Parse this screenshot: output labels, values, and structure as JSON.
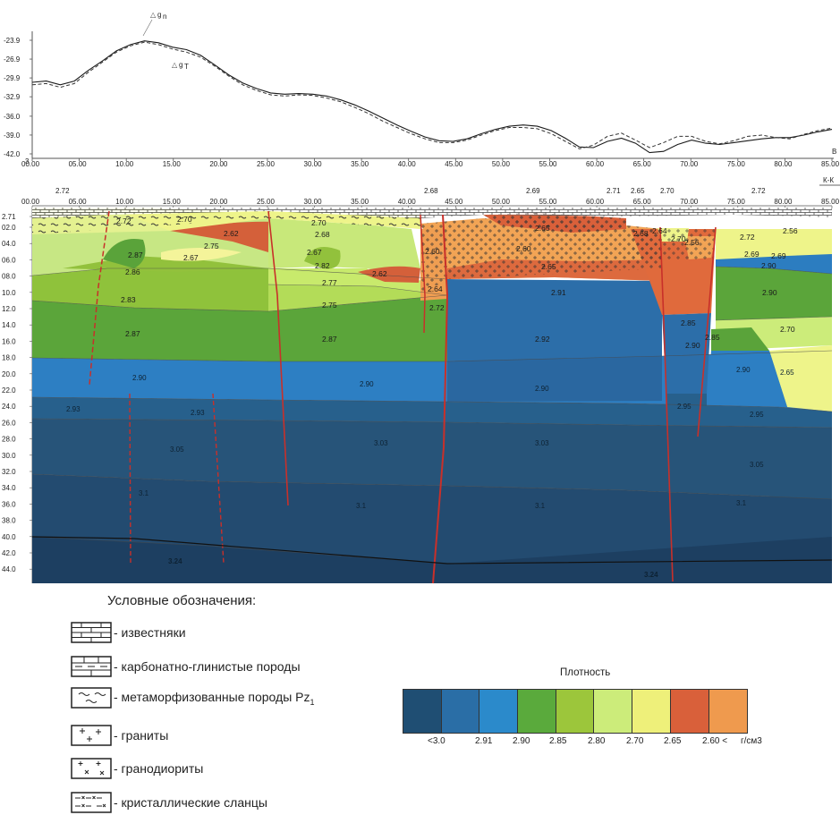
{
  "gravity_profile": {
    "y_ticks": [
      "-23.9",
      "-26.9",
      "-29.9",
      "-32.9",
      "-36.0",
      "-39.0",
      "-42.0"
    ],
    "x_ticks": [
      "00.00",
      "05.00",
      "10.00",
      "15.00",
      "20.00",
      "25.00",
      "30.00",
      "35.00",
      "40.00",
      "45.00",
      "50.00",
      "55.00",
      "60.00",
      "65.00",
      "70.00",
      "75.00",
      "80.00",
      "85.00"
    ],
    "x_origin_label": "3",
    "x_end_label": "B",
    "observed_label": "g",
    "observed_sub": "n",
    "model_label": "g",
    "model_sub": "T",
    "observed_values": [
      -30.6,
      -30.4,
      -31.0,
      -30.4,
      -28.7,
      -27.2,
      -25.6,
      -24.6,
      -24.0,
      -24.3,
      -25.0,
      -25.4,
      -26.3,
      -27.8,
      -29.4,
      -30.7,
      -31.6,
      -32.3,
      -32.5,
      -32.4,
      -32.5,
      -32.8,
      -33.4,
      -34.2,
      -35.2,
      -36.3,
      -37.4,
      -38.4,
      -39.3,
      -39.9,
      -40.0,
      -39.6,
      -38.8,
      -38.1,
      -37.6,
      -37.4,
      -37.6,
      -38.3,
      -39.5,
      -40.9,
      -41.0,
      -40.0,
      -39.5,
      -40.3,
      -41.8,
      -41.6,
      -40.5,
      -39.8,
      -40.3,
      -40.5,
      -40.2,
      -39.9,
      -39.6,
      -39.4,
      -39.4,
      -39.0,
      -38.5,
      -38.1
    ],
    "model_values": [
      -31.0,
      -30.8,
      -31.4,
      -30.8,
      -29.0,
      -27.4,
      -25.8,
      -24.8,
      -24.2,
      -24.6,
      -25.3,
      -25.8,
      -26.6,
      -28.0,
      -29.6,
      -31.0,
      -31.9,
      -32.6,
      -32.8,
      -32.6,
      -32.7,
      -33.1,
      -33.7,
      -34.6,
      -35.6,
      -36.8,
      -37.8,
      -38.8,
      -39.6,
      -40.2,
      -40.2,
      -39.8,
      -39.0,
      -38.3,
      -37.8,
      -37.8,
      -38.0,
      -38.8,
      -40.0,
      -41.2,
      -40.6,
      -39.2,
      -38.7,
      -39.8,
      -41.0,
      -40.2,
      -39.2,
      -39.2,
      -40.0,
      -40.4,
      -39.9,
      -39.2,
      -39.0,
      -39.4,
      -39.6,
      -38.9,
      -38.3,
      -37.9
    ]
  },
  "section": {
    "corner_label": "К-К",
    "x_ticks": [
      "00.00",
      "05.00",
      "10.00",
      "15.00",
      "20.00",
      "25.00",
      "30.00",
      "35.00",
      "40.00",
      "45.00",
      "50.00",
      "55.00",
      "60.00",
      "65.00",
      "70.00",
      "75.00",
      "80.00",
      "85.00"
    ],
    "depth_ticks": [
      "2.71",
      "02.0",
      "04.0",
      "06.0",
      "08.0",
      "10.0",
      "12.0",
      "14.0",
      "16.0",
      "18.0",
      "20.0",
      "22.0",
      "24.0",
      "26.0",
      "28.0",
      "30.0",
      "32.0",
      "34.0",
      "36.0",
      "38.0",
      "40.0",
      "42.0",
      "44.0"
    ],
    "surface_labels": [
      "2.72",
      "2.68",
      "2.69",
      "2.71",
      "2.65",
      "2.70",
      "2.72"
    ],
    "values": [
      "2.72",
      "2.70",
      "2.75",
      "2.67",
      "2.87",
      "2.86",
      "2.62",
      "2.70",
      "2.68",
      "2.67",
      "2.82",
      "2.62",
      "2.77",
      "2.75",
      "2.60",
      "2.64",
      "2.72",
      "2.65",
      "2.60",
      "2.65",
      "2.68",
      "2.64",
      "2.70",
      "2.56",
      "2.72",
      "2.56",
      "2.69",
      "2.69",
      "2.83",
      "2.87",
      "2.87",
      "2.90",
      "2.90",
      "2.91",
      "2.92",
      "2.90",
      "2.85",
      "2.90",
      "2.85",
      "2.70",
      "2.90",
      "2.90",
      "2.65",
      "2.93",
      "2.93",
      "2.95",
      "2.95",
      "3.05",
      "3.03",
      "3.03",
      "3.05",
      "3.1",
      "3.1",
      "3.1",
      "3.1",
      "3.24",
      "3.24",
      "2.90"
    ]
  },
  "legend": {
    "title": "Условные обозначения:",
    "items": [
      {
        "icon": "limestone-pattern",
        "label": "- известняки"
      },
      {
        "icon": "carbonate-clay-pattern",
        "label": "- карбонатно-глинистые породы"
      },
      {
        "icon": "metamorphic-pattern",
        "label": "- метаморфизованные породы Pz",
        "sub": "1"
      },
      {
        "icon": "granite-pattern",
        "label": "- граниты"
      },
      {
        "icon": "granodiorite-pattern",
        "label": "- гранодиориты"
      },
      {
        "icon": "crystalline-schist-pattern",
        "label": "- кристаллические сланцы"
      }
    ]
  },
  "density_scale": {
    "title": "Плотность",
    "colors": [
      "#1f4e73",
      "#2a6ea6",
      "#2b8acb",
      "#5aaa3c",
      "#9cc63b",
      "#ccec7a",
      "#eef07a",
      "#d9603a",
      "#ef9a4e"
    ],
    "ticks": [
      "<3.0",
      "2.91",
      "2.90",
      "2.85",
      "2.80",
      "2.70",
      "2.65",
      "2.60 <",
      "г/см3"
    ]
  }
}
